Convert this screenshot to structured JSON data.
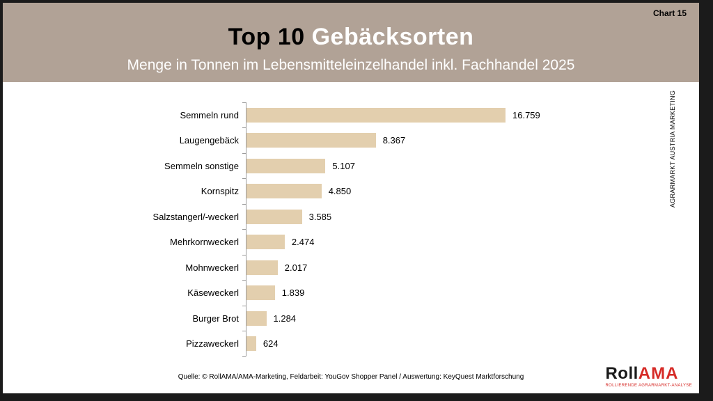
{
  "page": {
    "frame_color": "#1b1b1b",
    "slide_background": "#ffffff"
  },
  "header": {
    "chart_number": "Chart 15",
    "title_part_black": "Top 10 ",
    "title_part_white": "Gebäcksorten",
    "subtitle": "Menge in Tonnen im Lebensmitteleinzelhandel inkl. Fachhandel 2025",
    "background_color": "#b1a296"
  },
  "chart_data": {
    "type": "bar",
    "orientation": "horizontal",
    "title": "Top 10 Gebäcksorten",
    "subtitle": "Menge in Tonnen im Lebensmitteleinzelhandel inkl. Fachhandel 2025",
    "unit": "Tonnen",
    "categories": [
      "Semmeln rund",
      "Laugengebäck",
      "Semmeln sonstige",
      "Kornspitz",
      "Salzstangerl/-weckerl",
      "Mehrkornweckerl",
      "Mohnweckerl",
      "Käseweckerl",
      "Burger Brot",
      "Pizzaweckerl"
    ],
    "values": [
      16759,
      8367,
      5107,
      4850,
      3585,
      2474,
      2017,
      1839,
      1284,
      624
    ],
    "value_labels": [
      "16.759",
      "8.367",
      "5.107",
      "4.850",
      "3.585",
      "2.474",
      "2.017",
      "1.839",
      "1.284",
      "624"
    ],
    "xlim": [
      0,
      16759
    ],
    "grid": false,
    "legend": false,
    "bar_color": "#e3cfae",
    "axis_color": "#9b9b9b"
  },
  "sidebar_right": {
    "vertical_text": "AGRARMARKT AUSTRIA MARKETING"
  },
  "footer": {
    "source": "Quelle: © RollAMA/AMA-Marketing, Feldarbeit: YouGov Shopper Panel / Auswertung: KeyQuest Marktforschung",
    "logo": {
      "part_black": "Roll",
      "part_red": "AMA",
      "tagline": "ROLLIERENDE AGRARMARKT-ANALYSE",
      "red_color": "#d62b27"
    }
  }
}
